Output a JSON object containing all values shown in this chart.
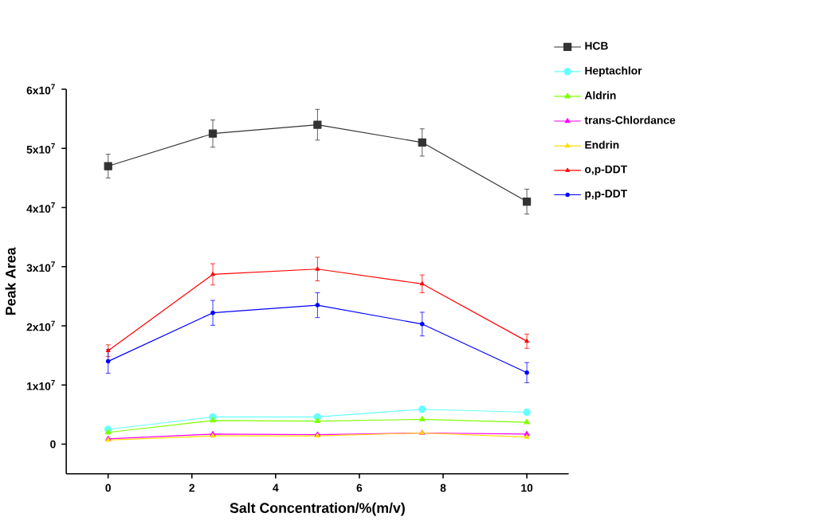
{
  "chart_data": {
    "type": "line",
    "xlabel": "Salt Concentration/%(m/v)",
    "ylabel": "Peak Area",
    "x": [
      0,
      2.5,
      5,
      7.5,
      10
    ],
    "xlim": [
      -1,
      11
    ],
    "ylim": [
      -5000000,
      60000000
    ],
    "xticks": [
      0,
      2,
      4,
      6,
      8,
      10
    ],
    "yticks": [
      0,
      {
        "value": 10000000,
        "label": "1x10$^{7}$"
      },
      {
        "value": 20000000,
        "label": "2x10$^{7}$"
      },
      {
        "value": 30000000,
        "label": "3x10$^{7}$"
      },
      {
        "value": 40000000,
        "label": "4x10$^{7}$"
      },
      {
        "value": 50000000,
        "label": "5x10$^{7}$"
      },
      {
        "value": 60000000,
        "label": "6x10$^{7}$"
      }
    ],
    "grid": false,
    "legend": "right",
    "series": [
      {
        "name": "HCB",
        "color": "#333333",
        "marker": "square",
        "values": [
          47000000,
          52500000,
          54000000,
          51000000,
          41000000
        ],
        "errors": [
          2000000,
          2300000,
          2600000,
          2300000,
          2100000
        ]
      },
      {
        "name": "Heptachlor",
        "color": "#66ffff",
        "marker": "circle",
        "values": [
          2500000,
          4600000,
          4600000,
          5900000,
          5400000
        ]
      },
      {
        "name": "Aldrin",
        "color": "#80ff00",
        "marker": "triangle",
        "values": [
          2000000,
          4000000,
          3900000,
          4200000,
          3700000
        ]
      },
      {
        "name": "trans-Chlordance",
        "color": "#ff00ff",
        "marker": "triangle",
        "values": [
          900000,
          1700000,
          1600000,
          1900000,
          1700000
        ]
      },
      {
        "name": "Endrin",
        "color": "#ffdd00",
        "marker": "triangle",
        "values": [
          700000,
          1400000,
          1400000,
          1900000,
          1200000
        ]
      },
      {
        "name": "o,p-DDT",
        "color": "#ff0000",
        "marker": "triangle",
        "values": [
          15800000,
          28700000,
          29600000,
          27100000,
          17400000
        ],
        "errors": [
          1000000,
          1800000,
          2000000,
          1500000,
          1200000
        ]
      },
      {
        "name": "p,p-DDT",
        "color": "#0000ff",
        "marker": "circle",
        "values": [
          14000000,
          22200000,
          23500000,
          20300000,
          12100000
        ],
        "errors": [
          2000000,
          2100000,
          2100000,
          2000000,
          1700000
        ]
      }
    ]
  }
}
